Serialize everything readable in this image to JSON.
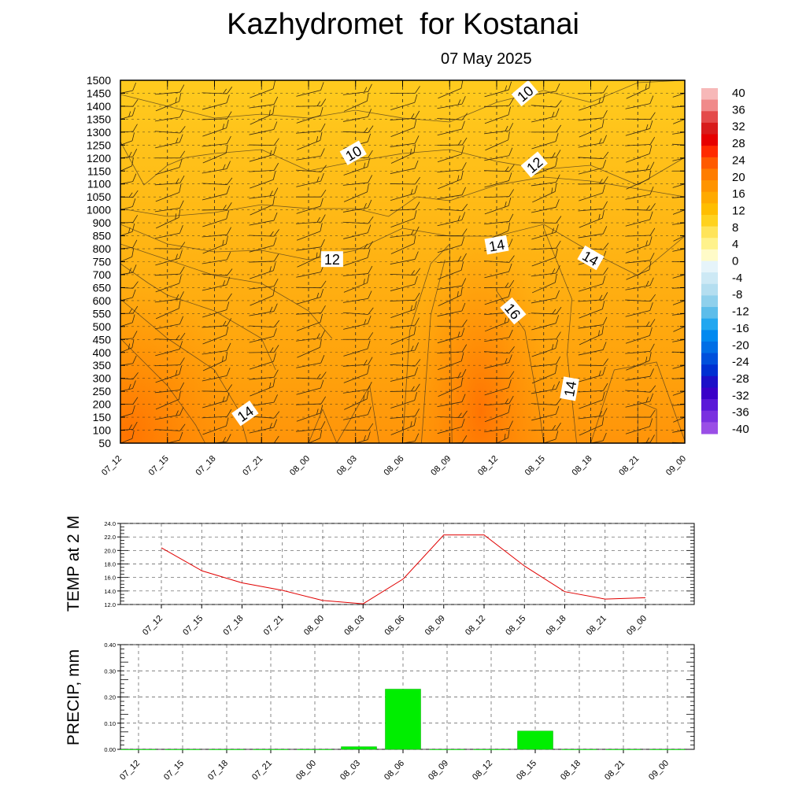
{
  "header": {
    "title": "Kazhydromet  for Kostanai",
    "date": "07 May 2025"
  },
  "chart_data": [
    {
      "type": "heatmap",
      "title": "Kazhydromet  for Kostanai",
      "subtitle": "07 May 2025",
      "x_categories": [
        "07_12",
        "07_15",
        "07_18",
        "07_21",
        "08_00",
        "08_03",
        "08_06",
        "08_09",
        "08_12",
        "08_15",
        "08_18",
        "08_21",
        "09_00"
      ],
      "y_levels": [
        1500,
        1450,
        1400,
        1350,
        1300,
        1250,
        1200,
        1150,
        1100,
        1050,
        1000,
        900,
        850,
        800,
        750,
        700,
        650,
        600,
        550,
        500,
        450,
        400,
        350,
        300,
        250,
        200,
        150,
        100,
        50
      ],
      "colorbar_ticks": [
        40,
        36,
        32,
        28,
        24,
        20,
        16,
        12,
        8,
        4,
        0,
        -4,
        -8,
        -12,
        -16,
        -20,
        -24,
        -28,
        -32,
        -36,
        -40
      ],
      "colorbar_colors": [
        "#f7b8b8",
        "#f08a8a",
        "#e44a4a",
        "#d81b1b",
        "#e60000",
        "#ff2a00",
        "#ff5a00",
        "#ff7d00",
        "#ff9400",
        "#ffaa00",
        "#ffbe00",
        "#ffd21e",
        "#ffe45a",
        "#fff28c",
        "#fffbc8",
        "#e6f4fa",
        "#cde9f5",
        "#b4def0",
        "#8fd0ec",
        "#5dbdea",
        "#22a7f0",
        "#0089f0",
        "#006ee6",
        "#0050dc",
        "#0030d2",
        "#1c10c8",
        "#3a00c8",
        "#5b18d8",
        "#7a30e0",
        "#9a4ee6"
      ],
      "contour_labels": [
        {
          "text": "10",
          "x_index": 4.95,
          "level_index": 5.6,
          "angle": -30
        },
        {
          "text": "10",
          "x_index": 8.6,
          "level_index": 1.0,
          "angle": -40
        },
        {
          "text": "12",
          "x_index": 8.8,
          "level_index": 6.5,
          "angle": -40
        },
        {
          "text": "12",
          "x_index": 4.5,
          "level_index": 13.8,
          "angle": 0
        },
        {
          "text": "14",
          "x_index": 8.0,
          "level_index": 12.7,
          "angle": -10
        },
        {
          "text": "14",
          "x_index": 10.0,
          "level_index": 13.7,
          "angle": 30
        },
        {
          "text": "16",
          "x_index": 8.35,
          "level_index": 17.8,
          "angle": 50
        },
        {
          "text": "14",
          "x_index": 9.55,
          "level_index": 23.8,
          "angle": -80
        },
        {
          "text": "14",
          "x_index": 2.65,
          "level_index": 25.7,
          "angle": -35
        }
      ]
    },
    {
      "type": "line",
      "ylabel": "TEMP at 2 M",
      "categories": [
        "07_12",
        "07_15",
        "07_18",
        "07_21",
        "08_00",
        "08_03",
        "08_06",
        "08_09",
        "08_12",
        "08_15",
        "08_18",
        "08_21",
        "09_00"
      ],
      "values": [
        20.4,
        17.0,
        15.2,
        14.1,
        12.6,
        12.1,
        15.8,
        22.3,
        22.3,
        17.7,
        13.9,
        12.8,
        13.0
      ],
      "ylim": [
        12.0,
        24.0
      ],
      "yticks": [
        "24.0",
        "22.0",
        "20.0",
        "18.0",
        "16.0",
        "14.0",
        "12.0"
      ],
      "line_color": "#e00000",
      "grid": true
    },
    {
      "type": "bar",
      "ylabel": "PRECIP, mm",
      "categories": [
        "07_12",
        "07_15",
        "07_18",
        "07_21",
        "08_00",
        "08_03",
        "08_06",
        "08_09",
        "08_12",
        "08_15",
        "08_18",
        "08_21",
        "09_00"
      ],
      "values": [
        0.0,
        0.0,
        0.0,
        0.0,
        0.0,
        0.01,
        0.23,
        0.0,
        0.0,
        0.07,
        0.0,
        0.0,
        0.0
      ],
      "ylim": [
        0.0,
        0.4
      ],
      "yticks": [
        "0.40",
        "0.30",
        "0.20",
        "0.10",
        "0.00"
      ],
      "bar_color": "#00ee00",
      "grid": true
    }
  ]
}
